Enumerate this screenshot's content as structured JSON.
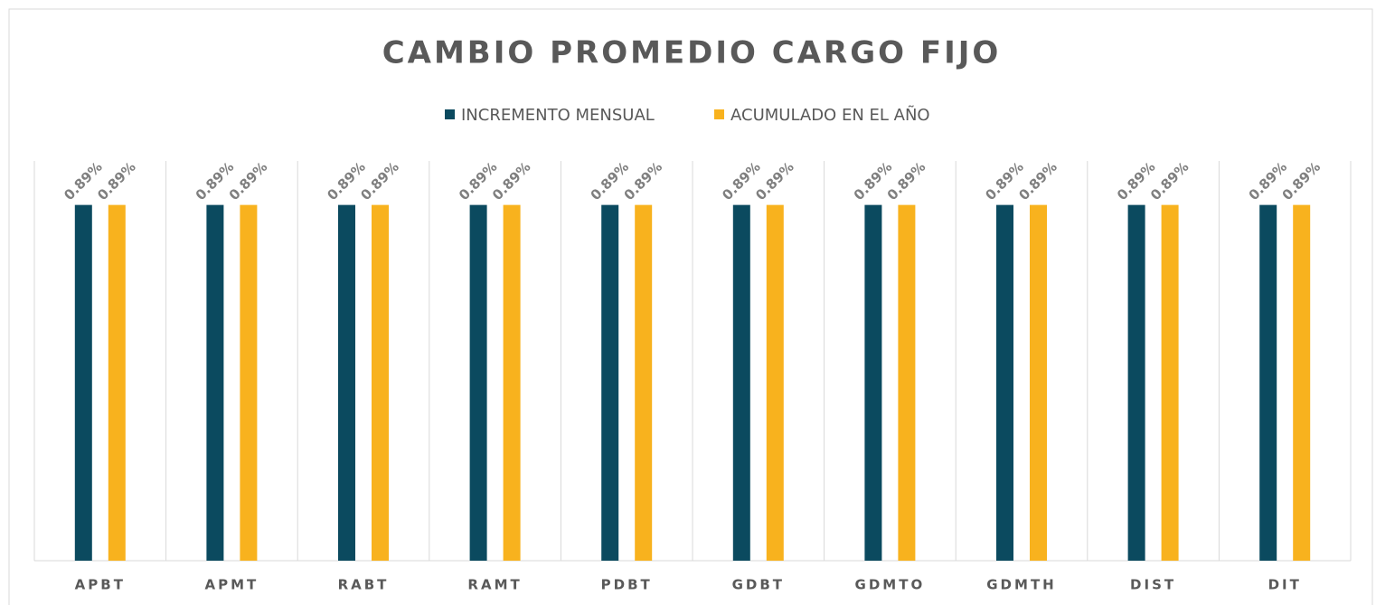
{
  "chart_data": {
    "type": "bar",
    "title": "CAMBIO PROMEDIO CARGO FIJO",
    "categories": [
      "APBT",
      "APMT",
      "RABT",
      "RAMT",
      "PDBT",
      "GDBT",
      "GDMTO",
      "GDMTH",
      "DIST",
      "DIT"
    ],
    "series": [
      {
        "name": "INCREMENTO MENSUAL",
        "color": "#0b4a5f",
        "values": [
          0.89,
          0.89,
          0.89,
          0.89,
          0.89,
          0.89,
          0.89,
          0.89,
          0.89,
          0.89
        ],
        "value_labels": [
          "0.89%",
          "0.89%",
          "0.89%",
          "0.89%",
          "0.89%",
          "0.89%",
          "0.89%",
          "0.89%",
          "0.89%",
          "0.89%"
        ]
      },
      {
        "name": "ACUMULADO EN EL AÑO",
        "color": "#f8b21e",
        "values": [
          0.89,
          0.89,
          0.89,
          0.89,
          0.89,
          0.89,
          0.89,
          0.89,
          0.89,
          0.89
        ],
        "value_labels": [
          "0.89%",
          "0.89%",
          "0.89%",
          "0.89%",
          "0.89%",
          "0.89%",
          "0.89%",
          "0.89%",
          "0.89%",
          "0.89%"
        ]
      }
    ],
    "ylim": [
      0,
      1
    ],
    "legend": "top"
  }
}
